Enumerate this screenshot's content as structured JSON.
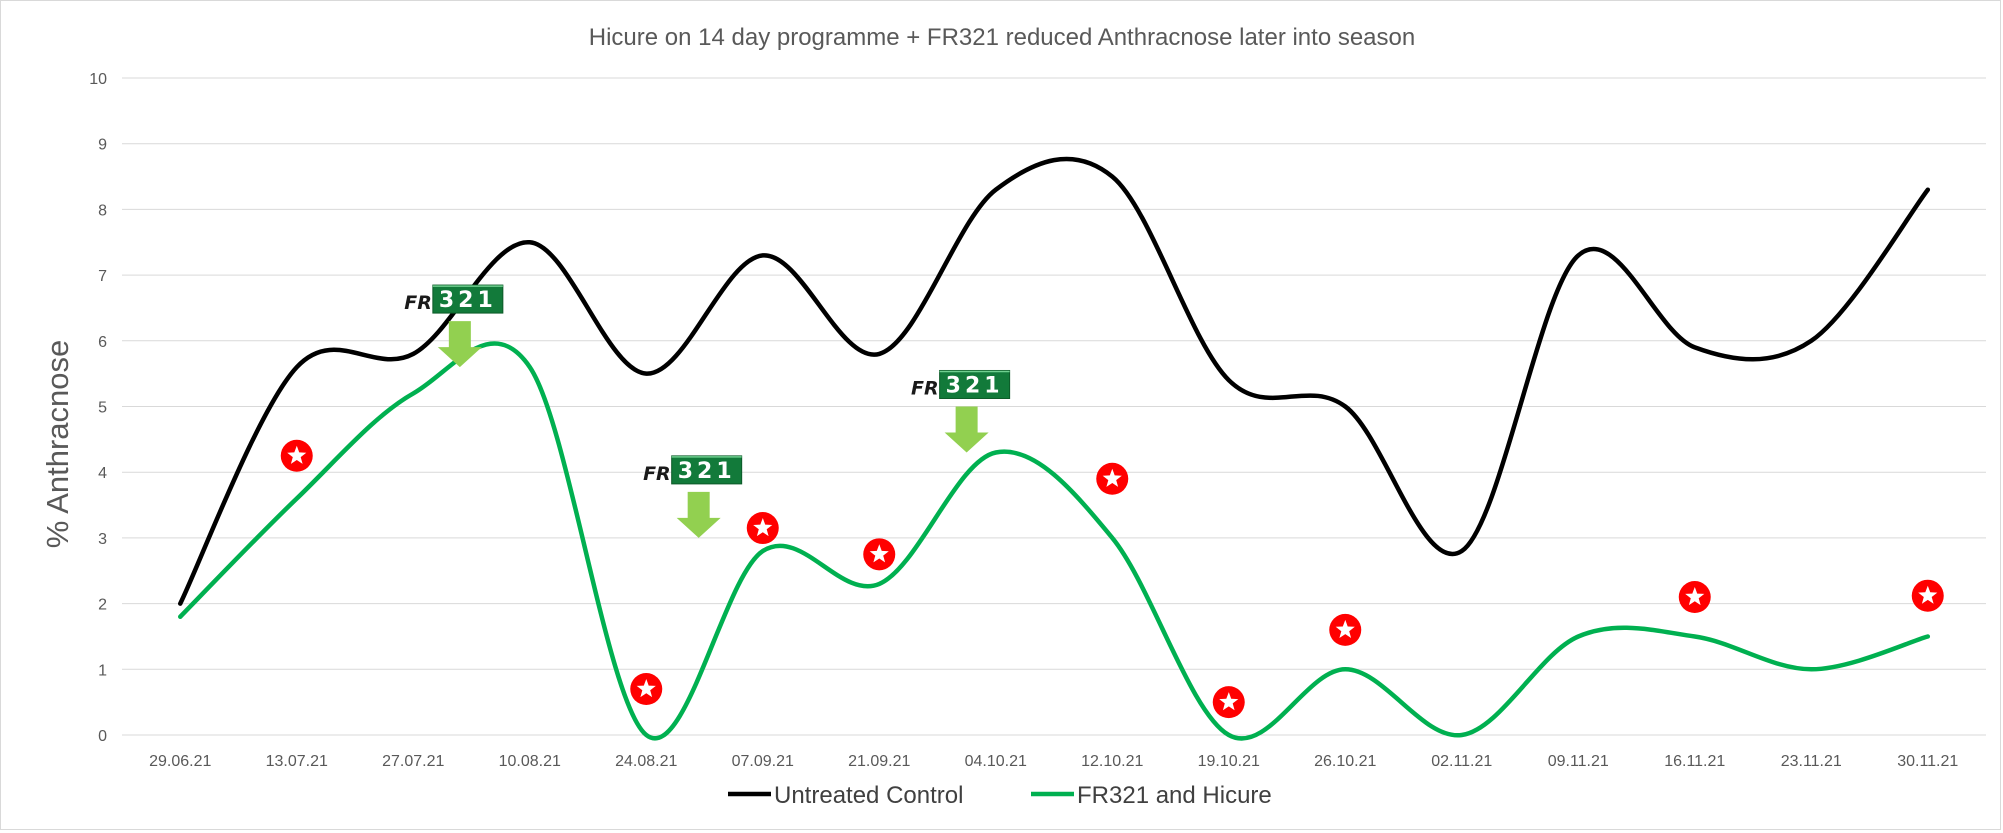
{
  "chart_data": {
    "type": "line",
    "title": "Hicure on 14 day programme + FR321 reduced Anthracnose later into season",
    "xlabel": "",
    "ylabel": "% Anthracnose",
    "ylim": [
      0,
      10
    ],
    "yticks": [
      0,
      1,
      2,
      3,
      4,
      5,
      6,
      7,
      8,
      9,
      10
    ],
    "grid": true,
    "legend_position": "bottom",
    "smooth": true,
    "categories": [
      "29.06.21",
      "13.07.21",
      "27.07.21",
      "10.08.21",
      "24.08.21",
      "07.09.21",
      "21.09.21",
      "04.10.21",
      "12.10.21",
      "19.10.21",
      "26.10.21",
      "02.11.21",
      "09.11.21",
      "16.11.21",
      "23.11.21",
      "30.11.21"
    ],
    "series": [
      {
        "name": "Untreated Control",
        "color": "#000000",
        "values": [
          2.0,
          5.6,
          5.8,
          7.5,
          5.5,
          7.3,
          5.8,
          8.3,
          8.5,
          5.4,
          5.0,
          2.8,
          7.3,
          5.9,
          6.0,
          8.3
        ]
      },
      {
        "name": "FR321 and Hicure",
        "color": "#00b050",
        "values": [
          1.8,
          3.6,
          5.2,
          5.6,
          0.0,
          2.8,
          2.3,
          4.3,
          3.0,
          0.0,
          1.0,
          0.0,
          1.5,
          1.5,
          1.0,
          1.5
        ]
      }
    ],
    "application_markers": {
      "description": "Hicure application points (red star markers)",
      "color": "#ff0000",
      "points": [
        {
          "category": "13.07.21",
          "y": 4.25
        },
        {
          "category": "24.08.21",
          "y": 0.7
        },
        {
          "category": "07.09.21",
          "y": 3.15
        },
        {
          "category": "21.09.21",
          "y": 2.75
        },
        {
          "category": "12.10.21",
          "y": 3.9
        },
        {
          "category": "19.10.21",
          "y": 0.5
        },
        {
          "category": "26.10.21",
          "y": 1.6
        },
        {
          "category": "16.11.21",
          "y": 2.1
        },
        {
          "category": "30.11.21",
          "y": 2.12
        }
      ]
    },
    "annotations": [
      {
        "text_prefix": "FR",
        "text_number": "321",
        "x_category_index": 2.4,
        "arrow_tip_y": 5.6,
        "arrow_color": "#92d050",
        "badge_color": "#127a3a"
      },
      {
        "text_prefix": "FR",
        "text_number": "321",
        "x_category_index": 4.45,
        "arrow_tip_y": 3.0,
        "arrow_color": "#92d050",
        "badge_color": "#127a3a"
      },
      {
        "text_prefix": "FR",
        "text_number": "321",
        "x_category_index": 6.75,
        "arrow_tip_y": 4.3,
        "arrow_color": "#92d050",
        "badge_color": "#127a3a"
      }
    ]
  }
}
